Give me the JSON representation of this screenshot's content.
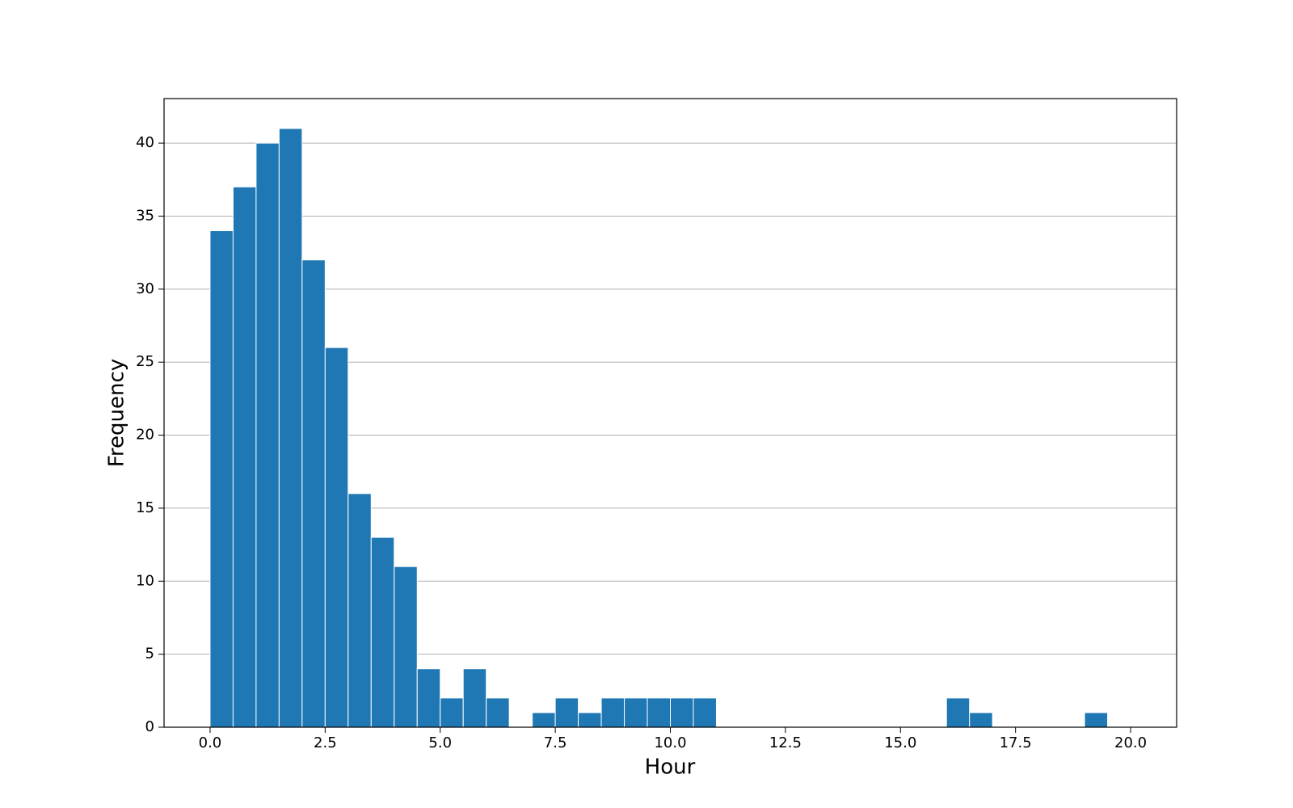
{
  "chart_data": {
    "type": "histogram",
    "x_label": "Hour",
    "y_label": "Frequency",
    "bins": [
      0,
      0.5,
      1,
      1.5,
      2,
      2.5,
      3,
      3.5,
      4,
      4.5,
      5,
      5.5,
      6,
      6.5,
      7,
      7.5,
      8,
      8.5,
      9,
      9.5,
      10,
      10.5,
      11,
      11.5,
      12,
      12.5,
      13,
      13.5,
      14,
      14.5,
      15,
      15.5,
      16,
      16.5,
      17,
      17.5,
      18,
      18.5,
      19,
      19.5,
      20
    ],
    "counts": [
      34,
      37,
      40,
      41,
      32,
      26,
      16,
      13,
      11,
      4,
      2,
      4,
      2,
      0,
      1,
      2,
      1,
      2,
      2,
      2,
      2,
      2,
      0,
      0,
      0,
      0,
      0,
      0,
      0,
      0,
      0,
      0,
      2,
      1,
      0,
      0,
      0,
      0,
      1,
      0
    ],
    "color": "#1f77b4",
    "xlim": [
      -1,
      21
    ],
    "ylim": [
      0,
      43.05
    ],
    "xticks": [
      {
        "value": 0,
        "label": "0.0"
      },
      2.5,
      {
        "value": 5,
        "label": "5.0"
      },
      7.5,
      {
        "value": 10,
        "label": "10.0"
      },
      12.5,
      {
        "value": 15,
        "label": "15.0"
      },
      17.5,
      {
        "value": 20,
        "label": "20.0"
      }
    ],
    "yticks": [
      0,
      5,
      10,
      15,
      20,
      25,
      30,
      35,
      40
    ],
    "grid": "y"
  }
}
